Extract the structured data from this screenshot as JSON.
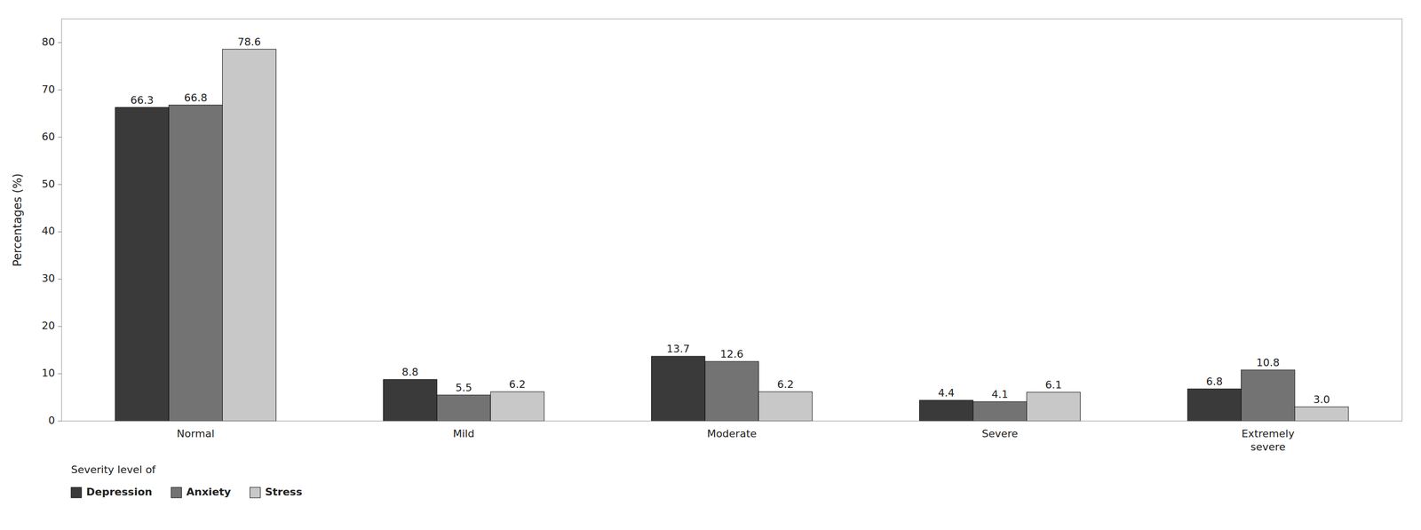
{
  "chart_data": {
    "type": "bar",
    "categories": [
      "Normal",
      "Mild",
      "Moderate",
      "Severe",
      "Extremely\nsevere"
    ],
    "series": [
      {
        "name": "Depression",
        "color": "#3a3a3a",
        "values": [
          66.3,
          8.8,
          13.7,
          4.4,
          6.8
        ]
      },
      {
        "name": "Anxiety",
        "color": "#737373",
        "values": [
          66.8,
          5.5,
          12.6,
          4.1,
          10.8
        ]
      },
      {
        "name": "Stress",
        "color": "#c8c8c8",
        "values": [
          78.6,
          6.2,
          6.2,
          6.1,
          3.0
        ],
        "value_labels": [
          "78.6",
          "6.2",
          "6.2",
          "6.1",
          "3.0"
        ]
      }
    ],
    "y_label": "Percentages (%)",
    "ylim": [
      0,
      85
    ],
    "yticks": [
      0,
      10,
      20,
      30,
      40,
      50,
      60,
      70,
      80
    ],
    "legend_title": "Severity level of",
    "legend": "bottom",
    "grid": false,
    "data_labels": true
  }
}
